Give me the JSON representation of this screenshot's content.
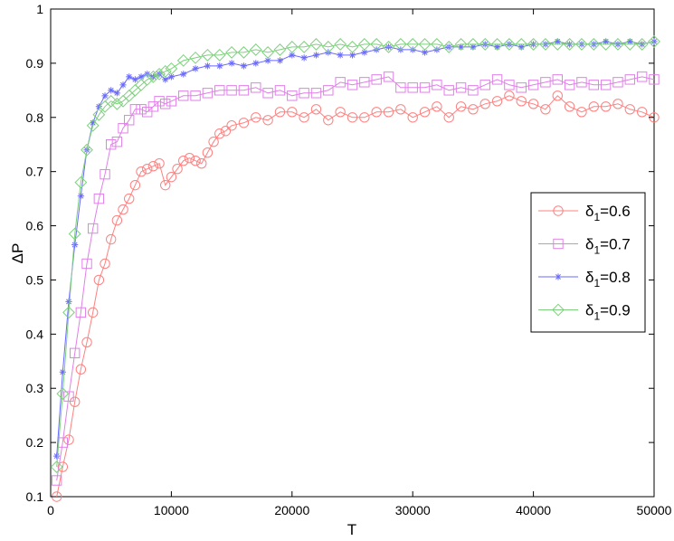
{
  "chart_data": {
    "type": "line",
    "title": "",
    "xlabel": "T",
    "ylabel": "ΔP",
    "xlim": [
      0,
      50000
    ],
    "ylim": [
      0.1,
      1.0
    ],
    "xticks": [
      0,
      10000,
      20000,
      30000,
      40000,
      50000
    ],
    "xtick_labels": [
      "0",
      "10000",
      "20000",
      "30000",
      "40000",
      "50000"
    ],
    "yticks": [
      0.1,
      0.2,
      0.3,
      0.4,
      0.5,
      0.6,
      0.7,
      0.8,
      0.9,
      1.0
    ],
    "ytick_labels": [
      "0.1",
      "0.2",
      "0.3",
      "0.4",
      "0.5",
      "0.6",
      "0.7",
      "0.8",
      "0.9",
      "1"
    ],
    "grid": false,
    "legend_position": "center-right",
    "series": [
      {
        "name": "δ1=0.6",
        "legend_symbol": "δ",
        "legend_sub": "1",
        "legend_value": "=0.6",
        "color": "#ff8080",
        "marker": "circle",
        "x": [
          500,
          1000,
          1500,
          2000,
          2500,
          3000,
          3500,
          4000,
          4500,
          5000,
          5500,
          6000,
          6500,
          7000,
          7500,
          8000,
          8500,
          9000,
          9500,
          10000,
          10500,
          11000,
          11500,
          12000,
          12500,
          13000,
          13500,
          14000,
          14500,
          15000,
          16000,
          17000,
          18000,
          19000,
          20000,
          21000,
          22000,
          23000,
          24000,
          25000,
          26000,
          27000,
          28000,
          29000,
          30000,
          31000,
          32000,
          33000,
          34000,
          35000,
          36000,
          37000,
          38000,
          39000,
          40000,
          41000,
          42000,
          43000,
          44000,
          45000,
          46000,
          47000,
          48000,
          49000,
          50000
        ],
        "y": [
          0.1,
          0.155,
          0.205,
          0.275,
          0.335,
          0.385,
          0.44,
          0.5,
          0.53,
          0.575,
          0.61,
          0.63,
          0.65,
          0.675,
          0.7,
          0.705,
          0.71,
          0.715,
          0.675,
          0.69,
          0.705,
          0.72,
          0.725,
          0.72,
          0.715,
          0.735,
          0.755,
          0.77,
          0.775,
          0.785,
          0.79,
          0.8,
          0.795,
          0.81,
          0.81,
          0.8,
          0.815,
          0.795,
          0.81,
          0.8,
          0.8,
          0.81,
          0.81,
          0.815,
          0.8,
          0.81,
          0.82,
          0.8,
          0.82,
          0.815,
          0.825,
          0.83,
          0.84,
          0.83,
          0.825,
          0.815,
          0.84,
          0.82,
          0.81,
          0.82,
          0.82,
          0.825,
          0.815,
          0.81,
          0.8
        ]
      },
      {
        "name": "δ1=0.7",
        "legend_symbol": "δ",
        "legend_sub": "1",
        "legend_value": "=0.7",
        "color": "#e080e8",
        "marker": "square",
        "x": [
          500,
          1000,
          1500,
          2000,
          2500,
          3000,
          3500,
          4000,
          4500,
          5000,
          5500,
          6000,
          6500,
          7000,
          7500,
          8000,
          8500,
          9000,
          9500,
          10000,
          11000,
          12000,
          13000,
          14000,
          15000,
          16000,
          17000,
          18000,
          19000,
          20000,
          21000,
          22000,
          23000,
          24000,
          25000,
          26000,
          27000,
          28000,
          29000,
          30000,
          31000,
          32000,
          33000,
          34000,
          35000,
          36000,
          37000,
          38000,
          39000,
          40000,
          41000,
          42000,
          43000,
          44000,
          45000,
          46000,
          47000,
          48000,
          49000,
          50000
        ],
        "y": [
          0.13,
          0.2,
          0.285,
          0.365,
          0.44,
          0.53,
          0.595,
          0.65,
          0.695,
          0.75,
          0.755,
          0.78,
          0.795,
          0.815,
          0.815,
          0.81,
          0.82,
          0.83,
          0.825,
          0.83,
          0.84,
          0.84,
          0.845,
          0.85,
          0.85,
          0.85,
          0.855,
          0.845,
          0.85,
          0.84,
          0.845,
          0.845,
          0.85,
          0.865,
          0.86,
          0.865,
          0.87,
          0.875,
          0.855,
          0.855,
          0.855,
          0.86,
          0.85,
          0.855,
          0.85,
          0.86,
          0.87,
          0.86,
          0.855,
          0.86,
          0.865,
          0.87,
          0.86,
          0.865,
          0.86,
          0.86,
          0.865,
          0.87,
          0.875,
          0.87
        ]
      },
      {
        "name": "δ1=0.8",
        "legend_symbol": "δ",
        "legend_sub": "1",
        "legend_value": "=0.8",
        "color": "#6a6aff",
        "marker": "star",
        "x": [
          500,
          1000,
          1500,
          2000,
          2500,
          3000,
          3500,
          4000,
          4500,
          5000,
          5500,
          6000,
          6500,
          7000,
          7500,
          8000,
          8500,
          9000,
          9500,
          10000,
          11000,
          12000,
          13000,
          14000,
          15000,
          16000,
          17000,
          18000,
          19000,
          20000,
          21000,
          22000,
          23000,
          24000,
          25000,
          26000,
          27000,
          28000,
          29000,
          30000,
          31000,
          32000,
          33000,
          34000,
          35000,
          36000,
          37000,
          38000,
          39000,
          40000,
          41000,
          42000,
          43000,
          44000,
          45000,
          46000,
          47000,
          48000,
          49000,
          50000
        ],
        "y": [
          0.175,
          0.33,
          0.46,
          0.565,
          0.655,
          0.74,
          0.79,
          0.82,
          0.84,
          0.85,
          0.845,
          0.86,
          0.875,
          0.87,
          0.875,
          0.88,
          0.875,
          0.88,
          0.87,
          0.875,
          0.88,
          0.89,
          0.895,
          0.895,
          0.9,
          0.895,
          0.9,
          0.905,
          0.905,
          0.915,
          0.91,
          0.915,
          0.92,
          0.915,
          0.915,
          0.92,
          0.925,
          0.93,
          0.925,
          0.925,
          0.92,
          0.925,
          0.93,
          0.93,
          0.93,
          0.935,
          0.93,
          0.935,
          0.93,
          0.935,
          0.935,
          0.94,
          0.935,
          0.935,
          0.935,
          0.94,
          0.935,
          0.94,
          0.935,
          0.94
        ]
      },
      {
        "name": "δ1=0.9",
        "legend_symbol": "δ",
        "legend_sub": "1",
        "legend_value": "=0.9",
        "color": "#7ed07e",
        "marker": "diamond",
        "x": [
          500,
          1000,
          1500,
          2000,
          2500,
          3000,
          3500,
          4000,
          4500,
          5000,
          5500,
          6000,
          6500,
          7000,
          7500,
          8000,
          8500,
          9000,
          9500,
          10000,
          11000,
          12000,
          13000,
          14000,
          15000,
          16000,
          17000,
          18000,
          19000,
          20000,
          21000,
          22000,
          23000,
          24000,
          25000,
          26000,
          27000,
          28000,
          29000,
          30000,
          31000,
          32000,
          33000,
          34000,
          35000,
          36000,
          37000,
          38000,
          39000,
          40000,
          41000,
          42000,
          43000,
          44000,
          45000,
          46000,
          47000,
          48000,
          49000,
          50000
        ],
        "y": [
          0.155,
          0.29,
          0.44,
          0.585,
          0.68,
          0.74,
          0.785,
          0.805,
          0.82,
          0.83,
          0.825,
          0.83,
          0.84,
          0.85,
          0.86,
          0.87,
          0.875,
          0.88,
          0.885,
          0.89,
          0.905,
          0.91,
          0.915,
          0.915,
          0.92,
          0.92,
          0.925,
          0.92,
          0.925,
          0.93,
          0.93,
          0.935,
          0.93,
          0.935,
          0.93,
          0.935,
          0.935,
          0.93,
          0.935,
          0.935,
          0.935,
          0.935,
          0.93,
          0.935,
          0.935,
          0.935,
          0.935,
          0.935,
          0.935,
          0.935,
          0.935,
          0.935,
          0.935,
          0.935,
          0.935,
          0.935,
          0.935,
          0.935,
          0.935,
          0.94
        ]
      }
    ]
  }
}
